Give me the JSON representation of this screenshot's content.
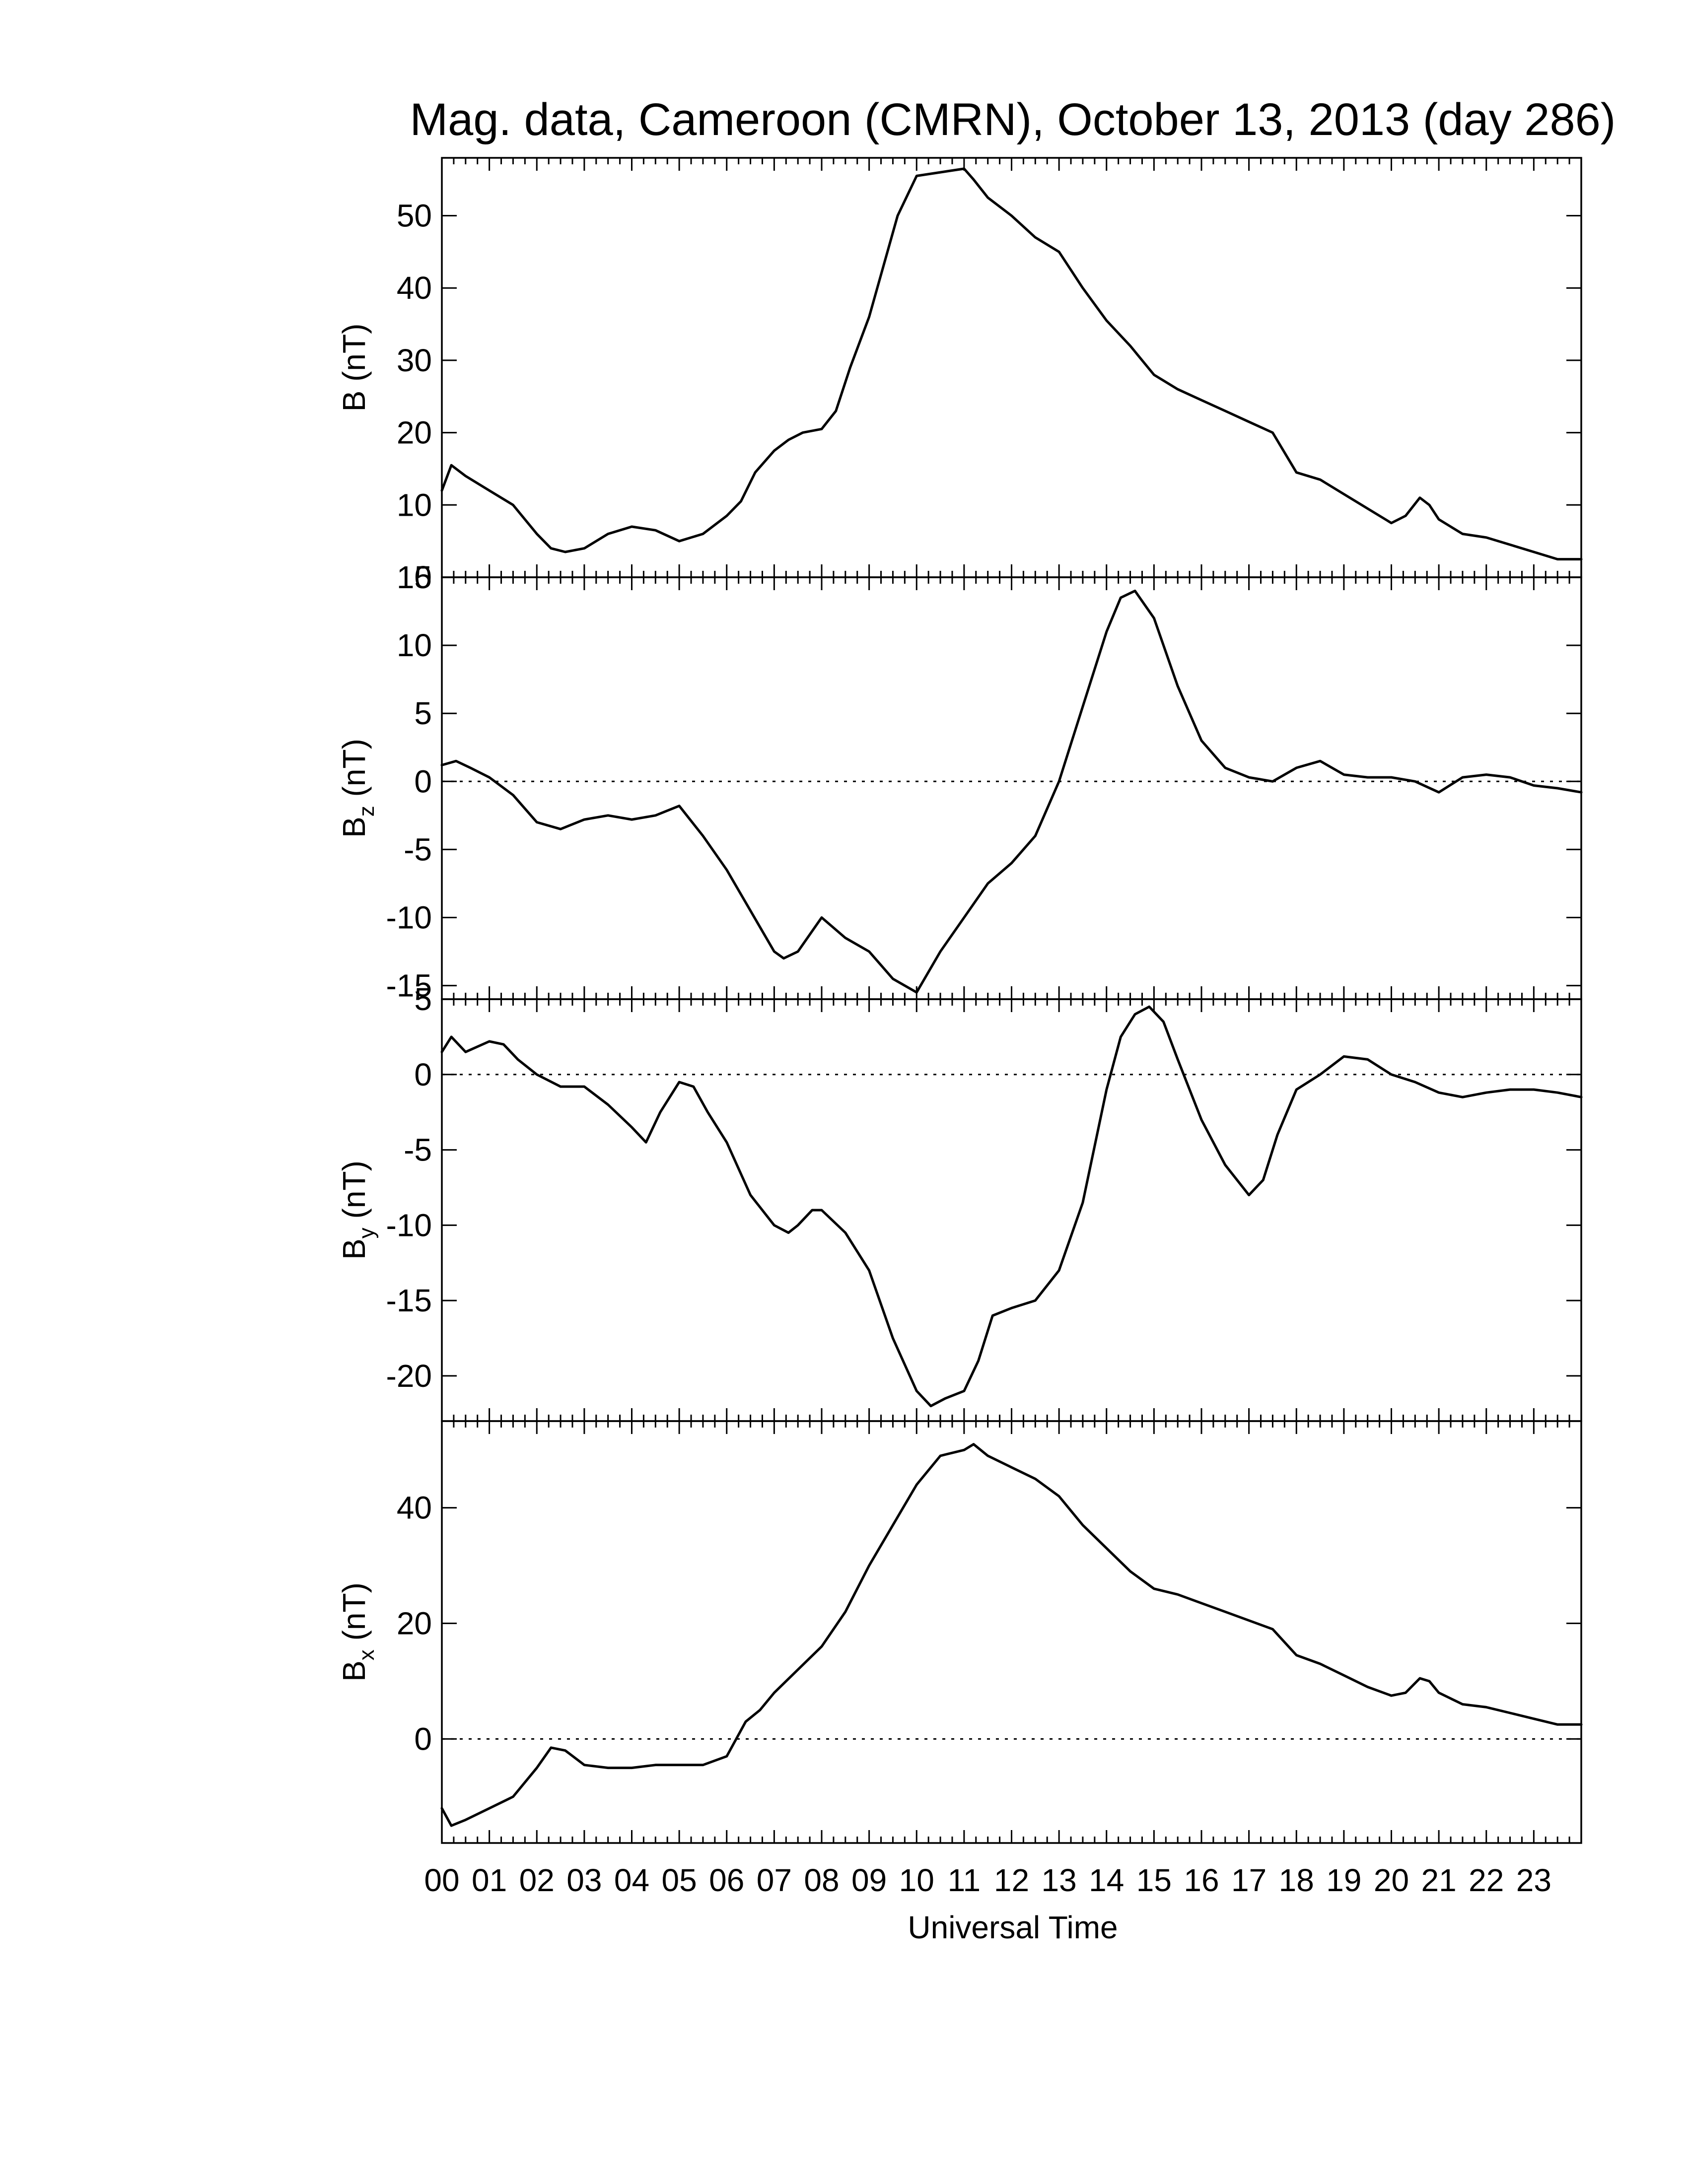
{
  "chart_data": {
    "type": "line",
    "title": "Mag. data, Cameroon (CMRN), October 13, 2013 (day 286)",
    "xlabel": "Universal Time",
    "x_tick_labels": [
      "00",
      "01",
      "02",
      "03",
      "04",
      "05",
      "06",
      "07",
      "08",
      "09",
      "10",
      "11",
      "12",
      "13",
      "14",
      "15",
      "16",
      "17",
      "18",
      "19",
      "20",
      "21",
      "22",
      "23"
    ],
    "xlim": [
      0,
      24
    ],
    "x_unit": "hours UT",
    "grid": false,
    "colors": {
      "line": "#000000",
      "background": "#ffffff"
    },
    "panels": [
      {
        "id": "B",
        "ylabel_main": "B",
        "ylabel_sub": "",
        "ylabel_unit": "(nT)",
        "ylim": [
          0,
          58
        ],
        "yticks": [
          0,
          10,
          20,
          30,
          40,
          50
        ],
        "zero_line": false,
        "x": [
          0,
          0.2,
          0.5,
          1,
          1.5,
          2,
          2.3,
          2.6,
          3,
          3.5,
          4,
          4.5,
          5,
          5.5,
          6,
          6.3,
          6.6,
          7,
          7.3,
          7.6,
          8,
          8.3,
          8.6,
          9,
          9.3,
          9.6,
          10,
          10.5,
          11,
          11.2,
          11.5,
          12,
          12.5,
          13,
          13.5,
          14,
          14.5,
          15,
          15.5,
          16,
          16.5,
          17,
          17.5,
          18,
          18.5,
          19,
          19.5,
          20,
          20.3,
          20.6,
          20.8,
          21,
          21.5,
          22,
          22.5,
          23,
          23.5,
          24
        ],
        "values": [
          12,
          15.5,
          14,
          12,
          10,
          6,
          4,
          3.5,
          4,
          6,
          7,
          6.5,
          5,
          6,
          8.5,
          10.5,
          14.5,
          17.5,
          19,
          20,
          20.5,
          23,
          29,
          36,
          43,
          50,
          55.5,
          56,
          56.5,
          55,
          52.5,
          50,
          47,
          45,
          40,
          35.5,
          32,
          28,
          26,
          24.5,
          23,
          21.5,
          20,
          14.5,
          13.5,
          11.5,
          9.5,
          7.5,
          8.5,
          11,
          10,
          8,
          6,
          5.5,
          4.5,
          3.5,
          2.5,
          2.5
        ]
      },
      {
        "id": "Bz",
        "ylabel_main": "B",
        "ylabel_sub": "z",
        "ylabel_unit": "(nT)",
        "ylim": [
          -16,
          15
        ],
        "yticks": [
          -15,
          -10,
          -5,
          0,
          5,
          10,
          15
        ],
        "zero_line": true,
        "x": [
          0,
          0.3,
          0.6,
          1,
          1.5,
          2,
          2.5,
          3,
          3.5,
          4,
          4.5,
          5,
          5.5,
          6,
          6.5,
          7,
          7.2,
          7.5,
          8,
          8.5,
          9,
          9.5,
          10,
          10.5,
          11,
          11.5,
          12,
          12.5,
          13,
          13.5,
          14,
          14.3,
          14.6,
          15,
          15.5,
          16,
          16.5,
          17,
          17.5,
          18,
          18.5,
          19,
          19.5,
          20,
          20.5,
          21,
          21.5,
          22,
          22.5,
          23,
          23.5,
          24
        ],
        "values": [
          1.2,
          1.5,
          1,
          0.3,
          -1,
          -3,
          -3.5,
          -2.8,
          -2.5,
          -2.8,
          -2.5,
          -1.8,
          -4,
          -6.5,
          -9.5,
          -12.5,
          -13,
          -12.5,
          -10,
          -11.5,
          -12.5,
          -14.5,
          -15.5,
          -12.5,
          -10,
          -7.5,
          -6,
          -4,
          0,
          5.5,
          11,
          13.5,
          14,
          12,
          7,
          3,
          1,
          0.3,
          0,
          1,
          1.5,
          0.5,
          0.3,
          0.3,
          0,
          -0.8,
          0.3,
          0.5,
          0.3,
          -0.3,
          -0.5,
          -0.8
        ]
      },
      {
        "id": "By",
        "ylabel_main": "B",
        "ylabel_sub": "y",
        "ylabel_unit": "(nT)",
        "ylim": [
          -23,
          5
        ],
        "yticks": [
          -20,
          -15,
          -10,
          -5,
          0,
          5
        ],
        "zero_line": true,
        "x": [
          0,
          0.2,
          0.5,
          1,
          1.3,
          1.6,
          2,
          2.5,
          3,
          3.5,
          4,
          4.3,
          4.6,
          5,
          5.3,
          5.6,
          6,
          6.5,
          7,
          7.3,
          7.5,
          7.8,
          8,
          8.5,
          9,
          9.5,
          10,
          10.3,
          10.6,
          11,
          11.3,
          11.6,
          12,
          12.5,
          13,
          13.5,
          14,
          14.3,
          14.6,
          14.9,
          15.2,
          15.5,
          16,
          16.5,
          17,
          17.3,
          17.6,
          18,
          18.5,
          19,
          19.5,
          20,
          20.5,
          21,
          21.5,
          22,
          22.5,
          23,
          23.5,
          24
        ],
        "values": [
          1.5,
          2.5,
          1.5,
          2.2,
          2,
          1,
          0,
          -0.8,
          -0.8,
          -2,
          -3.5,
          -4.5,
          -2.5,
          -0.5,
          -0.8,
          -2.5,
          -4.5,
          -8,
          -10,
          -10.5,
          -10,
          -9,
          -9,
          -10.5,
          -13,
          -17.5,
          -21,
          -22,
          -21.5,
          -21,
          -19,
          -16,
          -15.5,
          -15,
          -13,
          -8.5,
          -1,
          2.5,
          4,
          4.5,
          3.5,
          1,
          -3,
          -6,
          -8,
          -7,
          -4,
          -1,
          0,
          1.2,
          1,
          0,
          -0.5,
          -1.2,
          -1.5,
          -1.2,
          -1,
          -1,
          -1.2,
          -1.5
        ]
      },
      {
        "id": "Bx",
        "ylabel_main": "B",
        "ylabel_sub": "x",
        "ylabel_unit": "(nT)",
        "ylim": [
          -18,
          55
        ],
        "yticks": [
          0,
          20,
          40
        ],
        "zero_line": true,
        "x": [
          0,
          0.2,
          0.5,
          1,
          1.5,
          2,
          2.3,
          2.6,
          3,
          3.5,
          4,
          4.5,
          5,
          5.5,
          6,
          6.2,
          6.4,
          6.7,
          7,
          7.5,
          8,
          8.5,
          9,
          9.5,
          10,
          10.5,
          11,
          11.2,
          11.5,
          12,
          12.5,
          13,
          13.5,
          14,
          14.5,
          15,
          15.5,
          16,
          16.5,
          17,
          17.5,
          18,
          18.5,
          19,
          19.5,
          20,
          20.3,
          20.6,
          20.8,
          21,
          21.5,
          22,
          22.5,
          23,
          23.5,
          24
        ],
        "values": [
          -12,
          -15,
          -14,
          -12,
          -10,
          -5,
          -1.5,
          -2,
          -4.5,
          -5,
          -5,
          -4.5,
          -4.5,
          -4.5,
          -3,
          0,
          3,
          5,
          8,
          12,
          16,
          22,
          30,
          37,
          44,
          49,
          50,
          51,
          49,
          47,
          45,
          42,
          37,
          33,
          29,
          26,
          25,
          23.5,
          22,
          20.5,
          19,
          14.5,
          13,
          11,
          9,
          7.5,
          8,
          10.5,
          10,
          8,
          6,
          5.5,
          4.5,
          3.5,
          2.5,
          2.5
        ]
      }
    ]
  }
}
